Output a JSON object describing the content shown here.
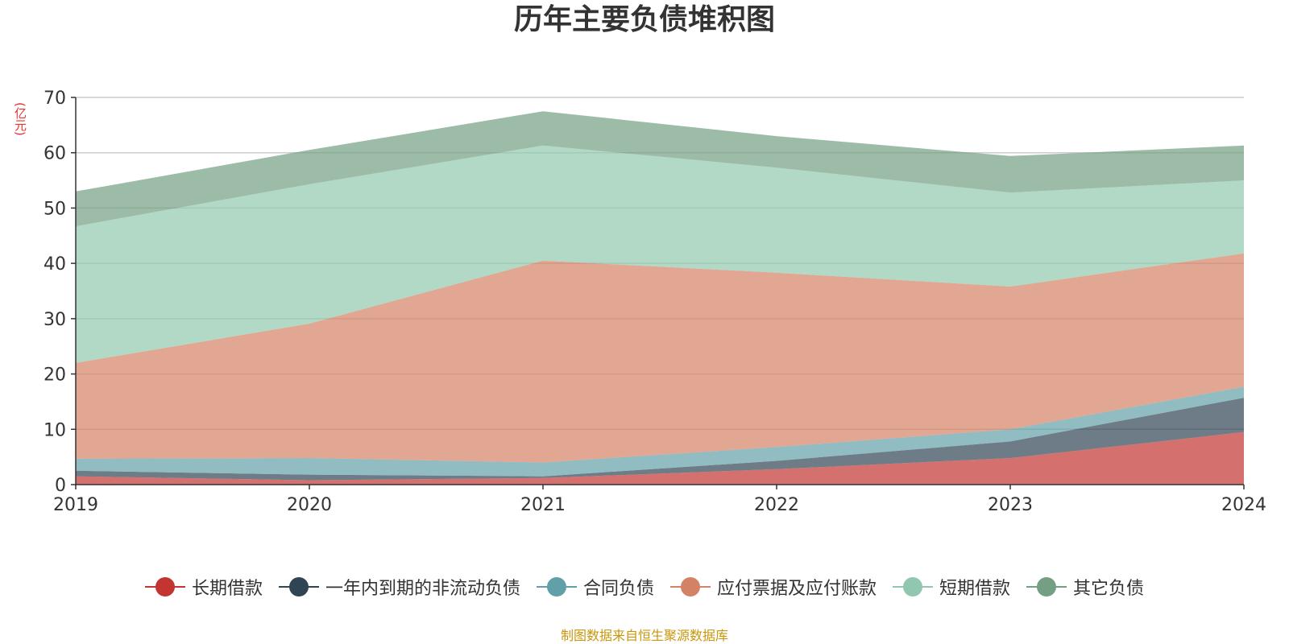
{
  "chart_data": {
    "type": "area",
    "stacked": true,
    "title": "历年主要负债堆积图",
    "y_unit": "(亿元)",
    "x": [
      "2019",
      "2020",
      "2021",
      "2022",
      "2023",
      "2024"
    ],
    "ylim": [
      0,
      70
    ],
    "yticks": [
      0,
      10,
      20,
      30,
      40,
      50,
      60,
      70
    ],
    "grid": true,
    "legend_position": "bottom",
    "series": [
      {
        "name": "长期借款",
        "color": "#c23531",
        "values": [
          1.5,
          0.8,
          1.2,
          2.8,
          4.8,
          9.5
        ]
      },
      {
        "name": "一年内到期的非流动负债",
        "color": "#2f4554",
        "values": [
          1.0,
          1.0,
          0.3,
          1.5,
          3.0,
          6.2
        ]
      },
      {
        "name": "合同负债",
        "color": "#61a0a8",
        "values": [
          2.2,
          3.0,
          2.5,
          2.5,
          2.2,
          2.0
        ]
      },
      {
        "name": "应付票据及应付账款",
        "color": "#d48265",
        "values": [
          17.3,
          24.3,
          36.5,
          31.5,
          25.8,
          24.1
        ]
      },
      {
        "name": "短期借款",
        "color": "#91c7ae",
        "values": [
          24.7,
          25.2,
          20.8,
          19.0,
          17.0,
          13.2
        ]
      },
      {
        "name": "其它负债",
        "color": "#749f83",
        "values": [
          6.3,
          6.2,
          6.2,
          5.7,
          6.6,
          6.3
        ]
      }
    ]
  },
  "source_note": "制图数据来自恒生聚源数据库"
}
